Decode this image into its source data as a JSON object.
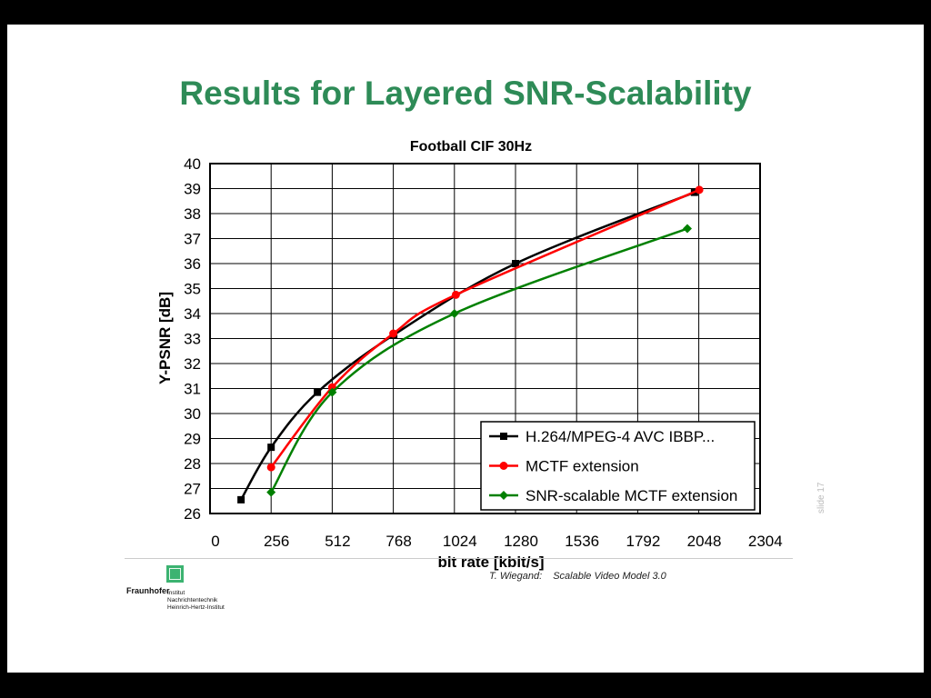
{
  "slide": {
    "title": "Results for Layered SNR-Scalability",
    "footer_author": "T. Wiegand:",
    "footer_text": "Scalable Video Model 3.0",
    "slide_number": "slide 17",
    "logo_name": "Fraunhofer",
    "logo_line1": "Institut",
    "logo_line2": "Nachrichtentechnik",
    "logo_line3": "Heinrich-Hertz-Institut"
  },
  "chart_data": {
    "type": "line",
    "title": "Football CIF 30Hz",
    "xlabel": "bit rate [kbit/s]",
    "ylabel": "Y-PSNR [dB]",
    "xlim": [
      0,
      2304
    ],
    "ylim": [
      26,
      40
    ],
    "xticks": [
      0,
      256,
      512,
      768,
      1024,
      1280,
      1536,
      1792,
      2048,
      2304
    ],
    "yticks": [
      26,
      27,
      28,
      29,
      30,
      31,
      32,
      33,
      34,
      35,
      36,
      37,
      38,
      39,
      40
    ],
    "grid": true,
    "legend_position": "bottom-right",
    "series": [
      {
        "name": "H.264/MPEG-4 AVC IBBP...",
        "color": "#000000",
        "marker": "square",
        "points": [
          [
            130,
            26.55
          ],
          [
            256,
            28.65
          ],
          [
            450,
            30.85
          ],
          [
            770,
            33.15
          ],
          [
            1280,
            36.0
          ],
          [
            2030,
            38.85
          ]
        ]
      },
      {
        "name": "MCTF extension",
        "color": "#ff0000",
        "marker": "circle",
        "points": [
          [
            256,
            27.85
          ],
          [
            512,
            31.05
          ],
          [
            768,
            33.2
          ],
          [
            1030,
            34.75
          ],
          [
            2050,
            38.95
          ]
        ]
      },
      {
        "name": "SNR-scalable MCTF extension",
        "color": "#008000",
        "marker": "diamond",
        "points": [
          [
            256,
            26.85
          ],
          [
            512,
            30.85
          ],
          [
            1024,
            34.0
          ],
          [
            2000,
            37.4
          ]
        ]
      }
    ]
  }
}
